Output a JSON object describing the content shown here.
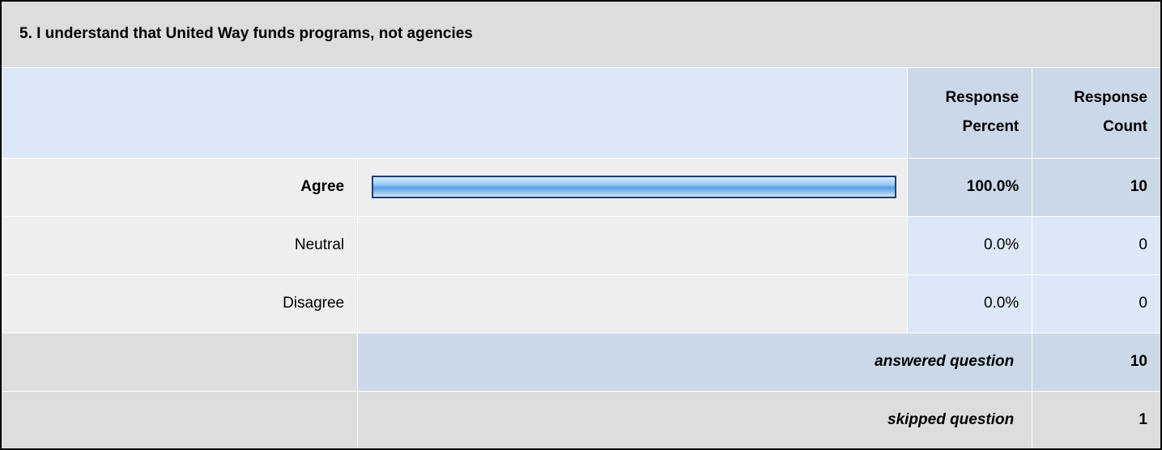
{
  "question": {
    "title": "5. I understand that United Way funds programs, not agencies"
  },
  "header": {
    "percent_label_line1": "Response",
    "percent_label_line2": "Percent",
    "count_label_line1": "Response",
    "count_label_line2": "Count"
  },
  "chart_data": {
    "type": "bar",
    "orientation": "horizontal",
    "title": "5. I understand that United Way funds programs, not agencies",
    "categories": [
      "Agree",
      "Neutral",
      "Disagree"
    ],
    "series": [
      {
        "values": [
          100.0,
          0.0,
          0.0
        ]
      }
    ],
    "percent_labels": [
      "100.0%",
      "0.0%",
      "0.0%"
    ],
    "counts": [
      10,
      0,
      0
    ],
    "xlim": [
      0,
      100
    ],
    "bar_color": "#5aa0e6",
    "bar_border_color": "#1f3e7a",
    "grid": false
  },
  "footer": {
    "answered_label": "answered question",
    "answered_count": "10",
    "skipped_label": "skipped question",
    "skipped_count": "1"
  }
}
